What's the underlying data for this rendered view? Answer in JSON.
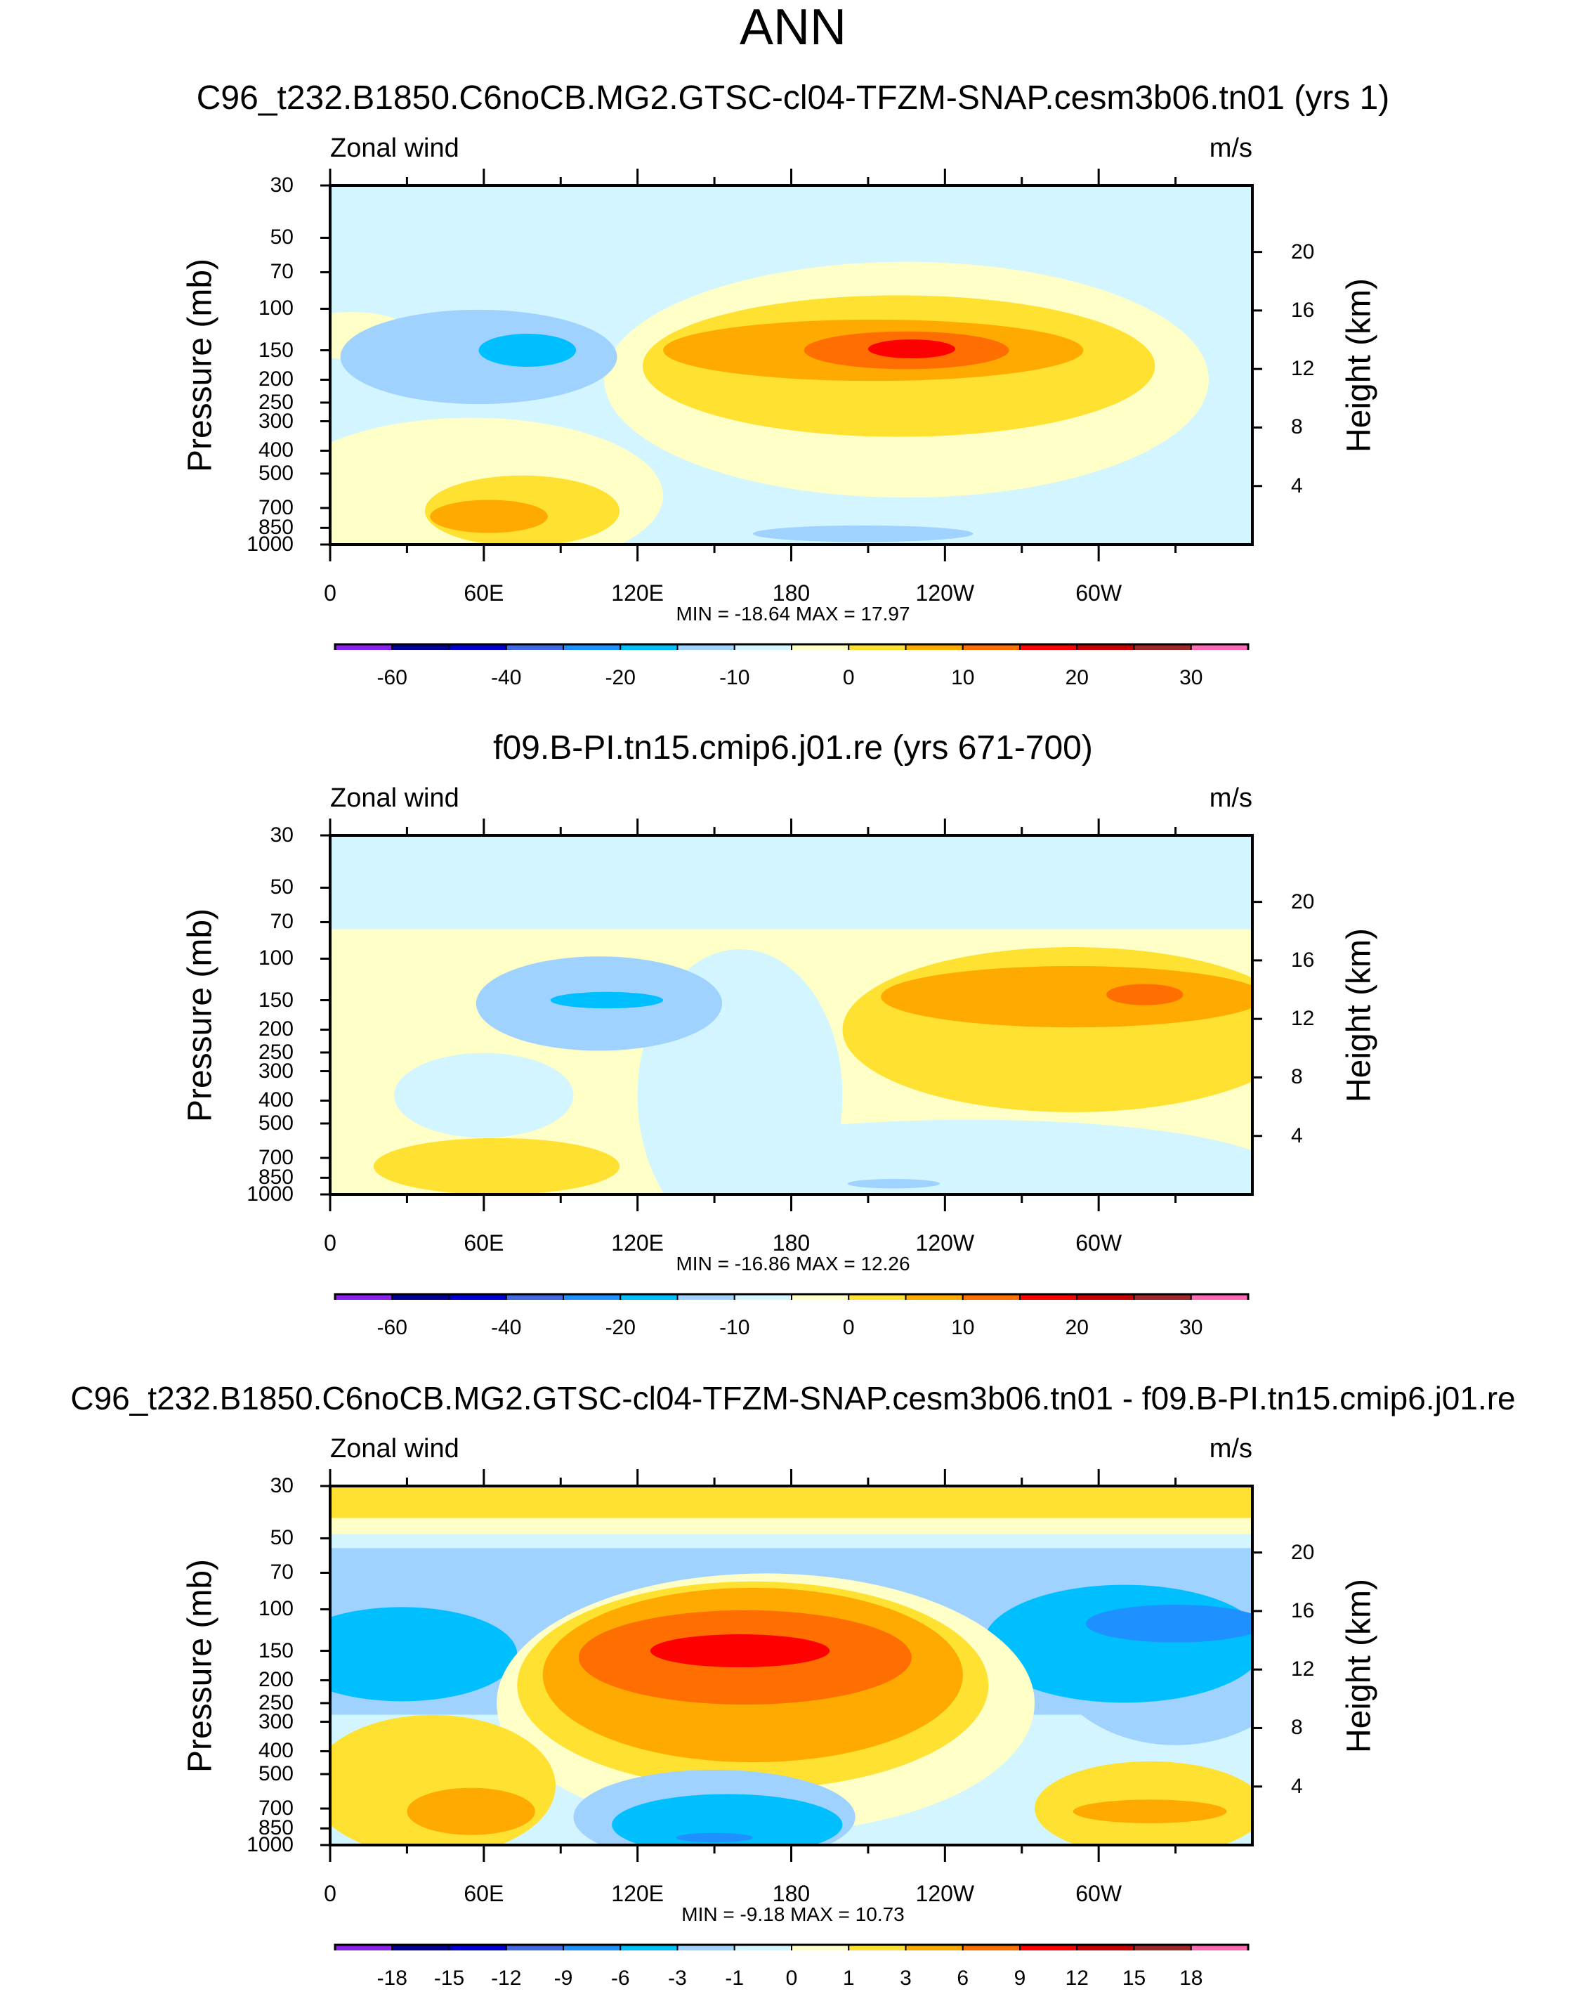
{
  "title": "ANN",
  "chart_data": [
    {
      "type": "contour",
      "title": "C96_t232.B1850.C6noCB.MG2.GTSC-cl04-TFZM-SNAP.cesm3b06.tn01 (yrs 1)",
      "variable": "Zonal wind",
      "units": "m/s",
      "ylabel": "Pressure (mb)",
      "ylabel_right": "Height (km)",
      "xlim": [
        0,
        360
      ],
      "ylim": [
        1000,
        30
      ],
      "x_ticks": [
        "0",
        "60E",
        "120E",
        "180",
        "120W",
        "60W"
      ],
      "y_ticks": [
        30,
        50,
        70,
        100,
        150,
        200,
        250,
        300,
        400,
        500,
        700,
        850,
        1000
      ],
      "height_ticks": [
        20,
        16,
        12,
        8,
        4
      ],
      "stats": "MIN = -18.64  MAX =  17.97",
      "colorbar_labels": [
        "-60",
        "-40",
        "-20",
        "-10",
        "0",
        "10",
        "20",
        "30"
      ],
      "background_level": 7,
      "regions": [
        {
          "shape": "ellipse",
          "lon": 225,
          "p": 200,
          "dlon": 118,
          "dlogp": 0.5,
          "level": 8
        },
        {
          "shape": "ellipse",
          "lon": 55,
          "p": 620,
          "dlon": 75,
          "dlogp": 0.33,
          "level": 8
        },
        {
          "shape": "ellipse",
          "lon": 8,
          "p": 130,
          "dlon": 25,
          "dlogp": 0.1,
          "level": 8
        },
        {
          "shape": "ellipse",
          "lon": 58,
          "p": 160,
          "dlon": 54,
          "dlogp": 0.2,
          "level": 6
        },
        {
          "shape": "ellipse",
          "lon": 77,
          "p": 150,
          "dlon": 19,
          "dlogp": 0.07,
          "level": 5
        },
        {
          "shape": "ellipse",
          "lon": 222,
          "p": 175,
          "dlon": 100,
          "dlogp": 0.3,
          "level": 9
        },
        {
          "shape": "ellipse",
          "lon": 212,
          "p": 150,
          "dlon": 82,
          "dlogp": 0.13,
          "level": 10
        },
        {
          "shape": "ellipse",
          "lon": 225,
          "p": 150,
          "dlon": 40,
          "dlogp": 0.08,
          "level": 11
        },
        {
          "shape": "ellipse",
          "lon": 227,
          "p": 148,
          "dlon": 17,
          "dlogp": 0.04,
          "level": 12
        },
        {
          "shape": "ellipse",
          "lon": 75,
          "p": 720,
          "dlon": 38,
          "dlogp": 0.15,
          "level": 9
        },
        {
          "shape": "ellipse",
          "lon": 62,
          "p": 760,
          "dlon": 23,
          "dlogp": 0.07,
          "level": 10
        },
        {
          "shape": "ellipse",
          "lon": 208,
          "p": 900,
          "dlon": 43,
          "dlogp": 0.035,
          "level": 6
        }
      ]
    },
    {
      "type": "contour",
      "title": "f09.B-PI.tn15.cmip6.j01.re (yrs 671-700)",
      "variable": "Zonal wind",
      "units": "m/s",
      "ylabel": "Pressure (mb)",
      "ylabel_right": "Height (km)",
      "xlim": [
        0,
        360
      ],
      "ylim": [
        1000,
        30
      ],
      "x_ticks": [
        "0",
        "60E",
        "120E",
        "180",
        "120W",
        "60W"
      ],
      "y_ticks": [
        30,
        50,
        70,
        100,
        150,
        200,
        250,
        300,
        400,
        500,
        700,
        850,
        1000
      ],
      "height_ticks": [
        20,
        16,
        12,
        8,
        4
      ],
      "stats": "MIN = -16.86  MAX =  12.26",
      "colorbar_labels": [
        "-60",
        "-40",
        "-20",
        "-10",
        "0",
        "10",
        "20",
        "30"
      ],
      "background_level": 7,
      "regions": [
        {
          "shape": "rect",
          "lon0": 0,
          "lon1": 360,
          "p0": 75,
          "p1": 1000,
          "level": 8
        },
        {
          "shape": "ellipse",
          "lon": 160,
          "p": 380,
          "dlon": 40,
          "dlogp": 0.62,
          "level": 7
        },
        {
          "shape": "ellipse",
          "lon": 250,
          "p": 800,
          "dlon": 120,
          "dlogp": 0.22,
          "level": 7
        },
        {
          "shape": "ellipse",
          "lon": 60,
          "p": 380,
          "dlon": 35,
          "dlogp": 0.18,
          "level": 7
        },
        {
          "shape": "ellipse",
          "lon": 105,
          "p": 155,
          "dlon": 48,
          "dlogp": 0.2,
          "level": 6
        },
        {
          "shape": "ellipse",
          "lon": 108,
          "p": 150,
          "dlon": 22,
          "dlogp": 0.035,
          "level": 5
        },
        {
          "shape": "ellipse",
          "lon": 290,
          "p": 200,
          "dlon": 90,
          "dlogp": 0.35,
          "level": 9
        },
        {
          "shape": "ellipse",
          "lon": 290,
          "p": 145,
          "dlon": 75,
          "dlogp": 0.13,
          "level": 10
        },
        {
          "shape": "ellipse",
          "lon": 318,
          "p": 142,
          "dlon": 15,
          "dlogp": 0.045,
          "level": 11
        },
        {
          "shape": "ellipse",
          "lon": 65,
          "p": 760,
          "dlon": 48,
          "dlogp": 0.12,
          "level": 9
        },
        {
          "shape": "ellipse",
          "lon": 220,
          "p": 900,
          "dlon": 18,
          "dlogp": 0.02,
          "level": 6
        }
      ]
    },
    {
      "type": "contour",
      "title": "C96_t232.B1850.C6noCB.MG2.GTSC-cl04-TFZM-SNAP.cesm3b06.tn01 - f09.B-PI.tn15.cmip6.j01.re",
      "variable": "Zonal wind",
      "units": "m/s",
      "ylabel": "Pressure (mb)",
      "ylabel_right": "Height (km)",
      "xlim": [
        0,
        360
      ],
      "ylim": [
        1000,
        30
      ],
      "x_ticks": [
        "0",
        "60E",
        "120E",
        "180",
        "120W",
        "60W"
      ],
      "y_ticks": [
        30,
        50,
        70,
        100,
        150,
        200,
        250,
        300,
        400,
        500,
        700,
        850,
        1000
      ],
      "height_ticks": [
        20,
        16,
        12,
        8,
        4
      ],
      "stats": "MIN =  -9.18  MAX =  10.73",
      "colorbar_labels": [
        "-18",
        "-15",
        "-12",
        "-9",
        "-6",
        "-3",
        "-1",
        "0",
        "1",
        "3",
        "6",
        "9",
        "12",
        "15",
        "18"
      ],
      "background_level": 7,
      "regions": [
        {
          "shape": "rect",
          "lon0": 0,
          "lon1": 360,
          "p0": 30,
          "p1": 41,
          "level": 9
        },
        {
          "shape": "rect",
          "lon0": 0,
          "lon1": 360,
          "p0": 41,
          "p1": 48,
          "level": 8
        },
        {
          "shape": "rect",
          "lon0": 0,
          "lon1": 360,
          "p0": 55,
          "p1": 280,
          "level": 6
        },
        {
          "shape": "ellipse",
          "lon": 330,
          "p": 150,
          "dlon": 50,
          "dlogp": 0.4,
          "level": 6
        },
        {
          "shape": "ellipse",
          "lon": 28,
          "p": 155,
          "dlon": 45,
          "dlogp": 0.2,
          "level": 5
        },
        {
          "shape": "ellipse",
          "lon": 310,
          "p": 140,
          "dlon": 55,
          "dlogp": 0.25,
          "level": 5
        },
        {
          "shape": "ellipse",
          "lon": 330,
          "p": 115,
          "dlon": 35,
          "dlogp": 0.08,
          "level": 4
        },
        {
          "shape": "ellipse",
          "lon": 170,
          "p": 250,
          "dlon": 105,
          "dlogp": 0.55,
          "level": 8
        },
        {
          "shape": "ellipse",
          "lon": 165,
          "p": 210,
          "dlon": 92,
          "dlogp": 0.44,
          "level": 9
        },
        {
          "shape": "ellipse",
          "lon": 165,
          "p": 190,
          "dlon": 82,
          "dlogp": 0.37,
          "level": 10
        },
        {
          "shape": "ellipse",
          "lon": 162,
          "p": 160,
          "dlon": 65,
          "dlogp": 0.2,
          "level": 11
        },
        {
          "shape": "ellipse",
          "lon": 160,
          "p": 150,
          "dlon": 35,
          "dlogp": 0.07,
          "level": 12
        },
        {
          "shape": "ellipse",
          "lon": 150,
          "p": 760,
          "dlon": 55,
          "dlogp": 0.2,
          "level": 6
        },
        {
          "shape": "ellipse",
          "lon": 155,
          "p": 820,
          "dlon": 45,
          "dlogp": 0.13,
          "level": 5
        },
        {
          "shape": "ellipse",
          "lon": 150,
          "p": 930,
          "dlon": 15,
          "dlogp": 0.02,
          "level": 4
        },
        {
          "shape": "ellipse",
          "lon": 40,
          "p": 560,
          "dlon": 48,
          "dlogp": 0.3,
          "level": 9
        },
        {
          "shape": "ellipse",
          "lon": 55,
          "p": 720,
          "dlon": 25,
          "dlogp": 0.1,
          "level": 10
        },
        {
          "shape": "ellipse",
          "lon": 320,
          "p": 700,
          "dlon": 45,
          "dlogp": 0.2,
          "level": 9
        },
        {
          "shape": "ellipse",
          "lon": 320,
          "p": 720,
          "dlon": 30,
          "dlogp": 0.05,
          "level": 10
        }
      ]
    }
  ],
  "palette": [
    "#8a22f0",
    "#000096",
    "#0000d2",
    "#4169e1",
    "#1e90ff",
    "#00bfff",
    "#a0d2ff",
    "#d2f5ff",
    "#ffffc8",
    "#ffe132",
    "#ffaa00",
    "#ff6e00",
    "#ff0000",
    "#c80000",
    "#a02828",
    "#ff69b4"
  ]
}
